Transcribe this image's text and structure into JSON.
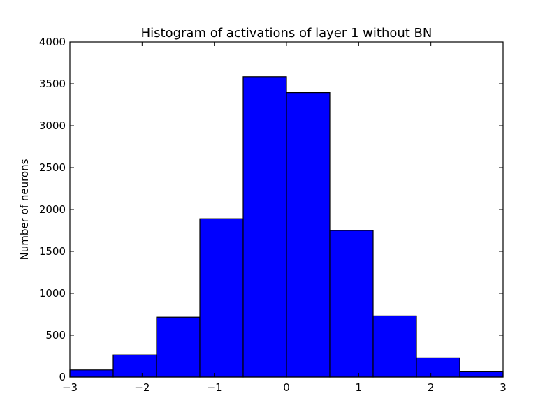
{
  "chart_data": {
    "type": "bar",
    "title": "Histogram of activations of layer 1  without BN",
    "xlabel": "",
    "ylabel": "Number of neurons",
    "bin_edges": [
      -3,
      -2.4,
      -1.8,
      -1.2,
      -0.6,
      0,
      0.6,
      1.2,
      1.8,
      2.4,
      3
    ],
    "values": [
      85,
      265,
      715,
      1890,
      3585,
      3395,
      1750,
      730,
      230,
      70
    ],
    "xlim": [
      -3,
      3
    ],
    "ylim": [
      0,
      4000
    ],
    "xticks": [
      -3,
      -2,
      -1,
      0,
      1,
      2,
      3
    ],
    "xtick_labels": [
      "−3",
      "−2",
      "−1",
      "0",
      "1",
      "2",
      "3"
    ],
    "yticks": [
      0,
      500,
      1000,
      1500,
      2000,
      2500,
      3000,
      3500,
      4000
    ],
    "ytick_labels": [
      "0",
      "500",
      "1000",
      "1500",
      "2000",
      "2500",
      "3000",
      "3500",
      "4000"
    ],
    "grid": false,
    "colors": {
      "bar_fill": "#0000ff",
      "bar_edge": "#000000",
      "axes": "#000000"
    }
  }
}
